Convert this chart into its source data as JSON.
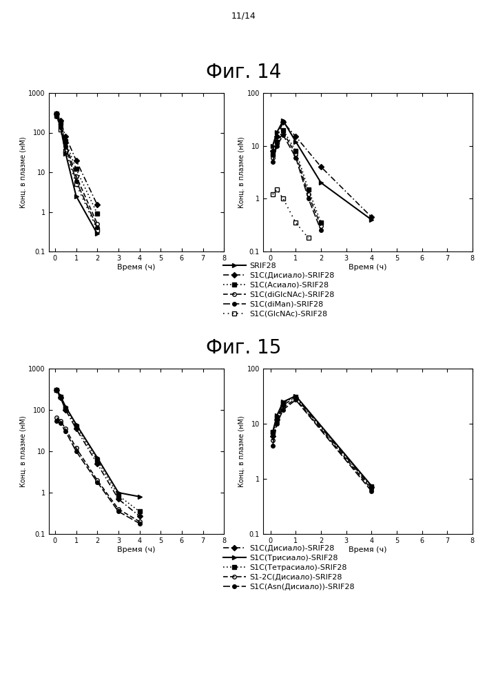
{
  "page_label": "11/14",
  "fig14_title": "Фиг. 14",
  "fig15_title": "Фиг. 15",
  "ylabel": "Конц. в плазме (нМ)",
  "xlabel": "Время (ч)",
  "fig14": {
    "left": {
      "series": [
        {
          "label": "SRIF28",
          "linestyle": "-",
          "marker": ">",
          "markersize": 4,
          "dashes": [],
          "fillstyle": "full",
          "color": "black",
          "lw": 1.5,
          "x": [
            0.083,
            0.25,
            0.5,
            1.0,
            2.0
          ],
          "y": [
            300,
            150,
            30,
            2.5,
            0.28
          ]
        },
        {
          "label": "S1C(Дисиало)-SRIF28",
          "linestyle": "--",
          "marker": "D",
          "markersize": 4,
          "dashes": [
            5,
            2,
            1,
            2
          ],
          "fillstyle": "full",
          "color": "black",
          "lw": 1.2,
          "x": [
            0.083,
            0.25,
            0.5,
            1.0,
            2.0
          ],
          "y": [
            300,
            200,
            80,
            20,
            1.5
          ]
        },
        {
          "label": "S1C(Асиало)-SRIF28",
          "linestyle": ":",
          "marker": "s",
          "markersize": 4,
          "dashes": [
            1,
            2
          ],
          "fillstyle": "full",
          "color": "black",
          "lw": 1.2,
          "x": [
            0.083,
            0.25,
            0.5,
            1.0,
            2.0
          ],
          "y": [
            300,
            180,
            60,
            12,
            0.9
          ]
        },
        {
          "label": "S1C(diGlcNAc)-SRIF28",
          "linestyle": "--",
          "marker": "o",
          "markersize": 4,
          "dashes": [
            4,
            2
          ],
          "fillstyle": "none",
          "color": "black",
          "lw": 1.2,
          "x": [
            0.083,
            0.25,
            0.5,
            1.0,
            2.0
          ],
          "y": [
            280,
            160,
            55,
            8,
            0.5
          ]
        },
        {
          "label": "S1C(diMan)-SRIF28",
          "linestyle": "--",
          "marker": "o",
          "markersize": 4,
          "dashes": [
            6,
            2
          ],
          "fillstyle": "full",
          "color": "black",
          "lw": 1.2,
          "x": [
            0.083,
            0.25,
            0.5,
            1.0,
            2.0
          ],
          "y": [
            260,
            140,
            45,
            6,
            0.4
          ]
        },
        {
          "label": "S1C(GlcNAc)-SRIF28",
          "linestyle": ":",
          "marker": "s",
          "markersize": 4,
          "dashes": [
            1,
            3
          ],
          "fillstyle": "none",
          "color": "black",
          "lw": 1.2,
          "x": [
            0.083,
            0.25,
            0.5,
            1.0,
            2.0
          ],
          "y": [
            270,
            120,
            35,
            5,
            0.35
          ]
        }
      ],
      "ylim": [
        0.1,
        1000
      ],
      "xlim": [
        -0.3,
        8
      ],
      "yticks": [
        0.1,
        1,
        10,
        100,
        1000
      ],
      "xticks": [
        0,
        1,
        2,
        3,
        4,
        5,
        6,
        7,
        8
      ]
    },
    "right": {
      "series": [
        {
          "label": "SRIF28",
          "linestyle": "-",
          "marker": ">",
          "markersize": 4,
          "dashes": [],
          "fillstyle": "full",
          "color": "black",
          "lw": 1.5,
          "x": [
            0.083,
            0.25,
            0.5,
            1.0,
            2.0,
            4.0
          ],
          "y": [
            10,
            18,
            30,
            12,
            2.0,
            0.4
          ]
        },
        {
          "label": "S1C(Дисиало)-SRIF28",
          "linestyle": "--",
          "marker": "D",
          "markersize": 4,
          "dashes": [
            5,
            2,
            1,
            2
          ],
          "fillstyle": "full",
          "color": "black",
          "lw": 1.2,
          "x": [
            0.083,
            0.25,
            0.5,
            1.0,
            2.0,
            4.0
          ],
          "y": [
            8,
            15,
            28,
            15,
            4.0,
            0.45
          ]
        },
        {
          "label": "S1C(Асиало)-SRIF28",
          "linestyle": ":",
          "marker": "s",
          "markersize": 4,
          "dashes": [
            1,
            2
          ],
          "fillstyle": "full",
          "color": "black",
          "lw": 1.2,
          "x": [
            0.083,
            0.25,
            0.5,
            1.0,
            1.5,
            2.0
          ],
          "y": [
            7,
            12,
            20,
            8,
            1.5,
            0.35
          ]
        },
        {
          "label": "S1C(diGlcNAc)-SRIF28",
          "linestyle": "--",
          "marker": "o",
          "markersize": 4,
          "dashes": [
            4,
            2
          ],
          "fillstyle": "none",
          "color": "black",
          "lw": 1.2,
          "x": [
            0.083,
            0.25,
            0.5,
            1.0,
            1.5,
            2.0
          ],
          "y": [
            6,
            11,
            18,
            7,
            1.2,
            0.3
          ]
        },
        {
          "label": "S1C(diMan)-SRIF28",
          "linestyle": "--",
          "marker": "o",
          "markersize": 4,
          "dashes": [
            6,
            2
          ],
          "fillstyle": "full",
          "color": "black",
          "lw": 1.2,
          "x": [
            0.083,
            0.25,
            0.5,
            1.0,
            1.5,
            2.0
          ],
          "y": [
            5,
            10,
            16,
            6,
            1.0,
            0.25
          ]
        },
        {
          "label": "S1C(GlcNAc)-SRIF28",
          "linestyle": ":",
          "marker": "s",
          "markersize": 4,
          "dashes": [
            1,
            3
          ],
          "fillstyle": "none",
          "color": "black",
          "lw": 1.2,
          "x": [
            0.083,
            0.25,
            0.5,
            1.0,
            1.5
          ],
          "y": [
            1.2,
            1.5,
            1.0,
            0.35,
            0.18
          ]
        }
      ],
      "ylim": [
        0.1,
        100
      ],
      "xlim": [
        -0.3,
        8
      ],
      "yticks": [
        0.1,
        1,
        10,
        100
      ],
      "xticks": [
        0,
        1,
        2,
        3,
        4,
        5,
        6,
        7,
        8
      ]
    },
    "legend": [
      {
        "label": "SRIF28",
        "linestyle": "-",
        "marker": ">",
        "fillstyle": "full",
        "dashes": [],
        "lw": 1.5
      },
      {
        "label": "S1C(Дисиало)-SRIF28",
        "linestyle": "--",
        "marker": "D",
        "fillstyle": "full",
        "dashes": [
          5,
          2,
          1,
          2
        ],
        "lw": 1.2
      },
      {
        "label": "S1C(Асиало)-SRIF28",
        "linestyle": ":",
        "marker": "s",
        "fillstyle": "full",
        "dashes": [
          1,
          2
        ],
        "lw": 1.2
      },
      {
        "label": "S1C(diGlcNAc)-SRIF28",
        "linestyle": "--",
        "marker": "o",
        "fillstyle": "none",
        "dashes": [
          4,
          2
        ],
        "lw": 1.2
      },
      {
        "label": "S1C(diMan)-SRIF28",
        "linestyle": "--",
        "marker": "o",
        "fillstyle": "full",
        "dashes": [
          6,
          2
        ],
        "lw": 1.2
      },
      {
        "label": "S1C(GlcNAc)-SRIF28",
        "linestyle": ":",
        "marker": "s",
        "fillstyle": "none",
        "dashes": [
          1,
          3
        ],
        "lw": 1.2
      }
    ]
  },
  "fig15": {
    "left": {
      "series": [
        {
          "label": "S1C(Дисиало)-SRIF28",
          "linestyle": "--",
          "marker": "D",
          "markersize": 4,
          "dashes": [
            5,
            2,
            1,
            2
          ],
          "fillstyle": "full",
          "color": "black",
          "lw": 1.2,
          "x": [
            0.083,
            0.25,
            0.5,
            1.0,
            2.0,
            3.0,
            4.0
          ],
          "y": [
            300,
            200,
            100,
            35,
            5,
            0.7,
            0.27
          ]
        },
        {
          "label": "S1C(Трисиало)-SRIF28",
          "linestyle": "-",
          "marker": ">",
          "markersize": 4,
          "dashes": [],
          "fillstyle": "full",
          "color": "black",
          "lw": 1.5,
          "x": [
            0.083,
            0.25,
            0.5,
            1.0,
            2.0,
            3.0,
            4.0
          ],
          "y": [
            300,
            220,
            120,
            45,
            7,
            1.0,
            0.8
          ]
        },
        {
          "label": "S1C(Тетрасиало)-SRIF28",
          "linestyle": ":",
          "marker": "s",
          "markersize": 4,
          "dashes": [
            1,
            2
          ],
          "fillstyle": "full",
          "color": "black",
          "lw": 1.2,
          "x": [
            0.083,
            0.25,
            0.5,
            1.0,
            2.0,
            3.0,
            4.0
          ],
          "y": [
            300,
            210,
            110,
            40,
            6,
            0.85,
            0.35
          ]
        },
        {
          "label": "S1-2C(Дисиало)-SRIF28",
          "linestyle": "--",
          "marker": "o",
          "markersize": 4,
          "dashes": [
            4,
            2
          ],
          "fillstyle": "none",
          "color": "black",
          "lw": 1.2,
          "x": [
            0.083,
            0.25,
            0.5,
            1.0,
            2.0,
            3.0,
            4.0
          ],
          "y": [
            65,
            55,
            35,
            12,
            2.0,
            0.4,
            0.2
          ]
        },
        {
          "label": "S1C(Asn(Дисиало))-SRIF28",
          "linestyle": "--",
          "marker": "o",
          "markersize": 4,
          "dashes": [
            6,
            2
          ],
          "fillstyle": "full",
          "color": "black",
          "lw": 1.2,
          "x": [
            0.083,
            0.25,
            0.5,
            1.0,
            2.0,
            3.0,
            4.0
          ],
          "y": [
            55,
            48,
            30,
            10,
            1.8,
            0.35,
            0.18
          ]
        }
      ],
      "ylim": [
        0.1,
        1000
      ],
      "xlim": [
        -0.3,
        8
      ],
      "yticks": [
        0.1,
        1,
        10,
        100,
        1000
      ],
      "xticks": [
        0,
        1,
        2,
        3,
        4,
        5,
        6,
        7,
        8
      ]
    },
    "right": {
      "series": [
        {
          "label": "S1C(Дисиало)-SRIF28",
          "linestyle": "--",
          "marker": "D",
          "markersize": 4,
          "dashes": [
            5,
            2,
            1,
            2
          ],
          "fillstyle": "full",
          "color": "black",
          "lw": 1.2,
          "x": [
            0.083,
            0.25,
            0.5,
            1.0,
            4.0
          ],
          "y": [
            6,
            12,
            22,
            30,
            0.7
          ]
        },
        {
          "label": "S1C(Трисиало)-SRIF28",
          "linestyle": "-",
          "marker": ">",
          "markersize": 4,
          "dashes": [],
          "fillstyle": "full",
          "color": "black",
          "lw": 1.5,
          "x": [
            0.083,
            0.25,
            0.5,
            1.0,
            4.0
          ],
          "y": [
            7,
            14,
            25,
            32,
            0.75
          ]
        },
        {
          "label": "S1C(Тетрасиало)-SRIF28",
          "linestyle": ":",
          "marker": "s",
          "markersize": 4,
          "dashes": [
            1,
            2
          ],
          "fillstyle": "full",
          "color": "black",
          "lw": 1.2,
          "x": [
            0.083,
            0.25,
            0.5,
            1.0,
            4.0
          ],
          "y": [
            7,
            13,
            24,
            31,
            0.72
          ]
        },
        {
          "label": "S1-2C(Дисиало)-SRIF28",
          "linestyle": "--",
          "marker": "o",
          "markersize": 4,
          "dashes": [
            4,
            2
          ],
          "fillstyle": "none",
          "color": "black",
          "lw": 1.2,
          "x": [
            0.083,
            0.25,
            0.5,
            1.0,
            4.0
          ],
          "y": [
            5,
            11,
            20,
            28,
            0.65
          ]
        },
        {
          "label": "S1C(Asn(Дисиало))-SRIF28",
          "linestyle": "--",
          "marker": "o",
          "markersize": 4,
          "dashes": [
            6,
            2
          ],
          "fillstyle": "full",
          "color": "black",
          "lw": 1.2,
          "x": [
            0.083,
            0.25,
            0.5,
            1.0,
            4.0
          ],
          "y": [
            4,
            10,
            18,
            27,
            0.6
          ]
        }
      ],
      "ylim": [
        0.1,
        100
      ],
      "xlim": [
        -0.3,
        8
      ],
      "yticks": [
        0.1,
        1,
        10,
        100
      ],
      "xticks": [
        0,
        1,
        2,
        3,
        4,
        5,
        6,
        7,
        8
      ]
    },
    "legend": [
      {
        "label": "S1C(Дисиало)-SRIF28",
        "linestyle": "--",
        "marker": "D",
        "fillstyle": "full",
        "dashes": [
          5,
          2,
          1,
          2
        ],
        "lw": 1.2
      },
      {
        "label": "S1C(Трисиало)-SRIF28",
        "linestyle": "-",
        "marker": ">",
        "fillstyle": "full",
        "dashes": [],
        "lw": 1.5
      },
      {
        "label": "S1C(Тетрасиало)-SRIF28",
        "linestyle": ":",
        "marker": "s",
        "fillstyle": "full",
        "dashes": [
          1,
          2
        ],
        "lw": 1.2
      },
      {
        "label": "S1-2C(Дисиало)-SRIF28",
        "linestyle": "--",
        "marker": "o",
        "fillstyle": "none",
        "dashes": [
          4,
          2
        ],
        "lw": 1.2
      },
      {
        "label": "S1C(Asn(Дисиало))-SRIF28",
        "linestyle": "--",
        "marker": "o",
        "fillstyle": "full",
        "dashes": [
          6,
          2
        ],
        "lw": 1.2
      }
    ]
  }
}
